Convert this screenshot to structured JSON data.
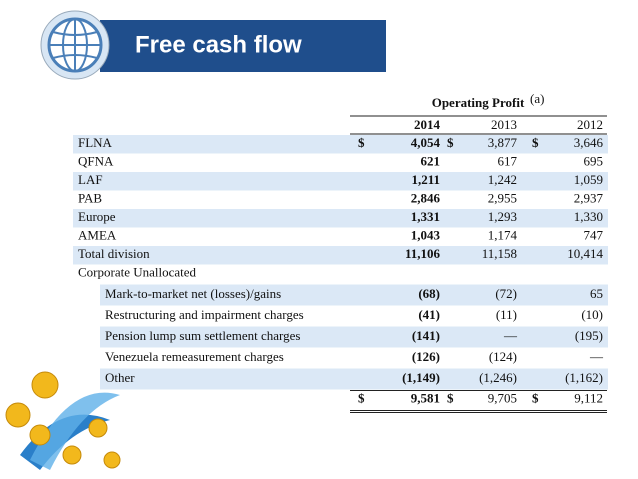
{
  "header": {
    "title": "Free cash flow"
  },
  "table": {
    "caption": "Operating Profit",
    "note": "(a)",
    "currency": "$",
    "years": [
      "2014",
      "2013",
      "2012"
    ],
    "rows": [
      {
        "label": "FLNA",
        "values": [
          "4,054",
          "3,877",
          "3,646"
        ]
      },
      {
        "label": "QFNA",
        "values": [
          "621",
          "617",
          "695"
        ]
      },
      {
        "label": "LAF",
        "values": [
          "1,211",
          "1,242",
          "1,059"
        ]
      },
      {
        "label": "PAB",
        "values": [
          "2,846",
          "2,955",
          "2,937"
        ]
      },
      {
        "label": "Europe",
        "values": [
          "1,331",
          "1,293",
          "1,330"
        ]
      },
      {
        "label": "AMEA",
        "values": [
          "1,043",
          "1,174",
          "747"
        ]
      },
      {
        "label": "Total division",
        "values": [
          "11,106",
          "11,158",
          "10,414"
        ]
      }
    ],
    "corporate": {
      "label": "Corporate Unallocated",
      "items": [
        {
          "label": "Mark-to-market net (losses)/gains",
          "values": [
            "(68)",
            "(72)",
            "65"
          ]
        },
        {
          "label": "Restructuring and impairment charges",
          "values": [
            "(41)",
            "(11)",
            "(10)"
          ]
        },
        {
          "label": "Pension lump sum settlement charges",
          "values": [
            "(141)",
            "—",
            "(195)"
          ]
        },
        {
          "label": "Venezuela remeasurement charges",
          "values": [
            "(126)",
            "(124)",
            "—"
          ]
        },
        {
          "label": "Other",
          "values": [
            "(1,149)",
            "(1,246)",
            "(1,162)"
          ]
        }
      ]
    },
    "total": [
      "9,581",
      "9,705",
      "9,112"
    ]
  }
}
